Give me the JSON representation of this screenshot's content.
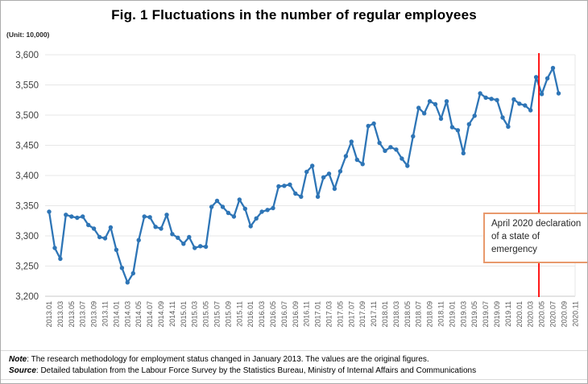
{
  "figure": {
    "title": "Fig. 1 Fluctuations in the number of regular employees",
    "unit_label": "(Unit: 10,000)",
    "note_label": "Note",
    "note_text": ": The research methodology for employment status changed in January 2013. The values are the original figures.",
    "source_label": "Source",
    "source_text": ": Detailed tabulation from the Labour Force Survey by the Statistics Bureau, Ministry of Internal Affairs and Communications"
  },
  "annotation": {
    "text": "April 2020 declaration of a state of emergency"
  },
  "colors": {
    "line": "#2e75b6",
    "marker": "#2e75b6",
    "event_line": "#ff0000",
    "annotation_border": "#e8996c",
    "gridline": "#e7e7e7",
    "bottom_axis": "#c9c9c9",
    "y_label_text": "#404040",
    "x_label_text": "#595959"
  },
  "chart_data": {
    "type": "line",
    "title": "Fig. 1 Fluctuations in the number of regular employees",
    "unit": "10,000 persons",
    "ylim": [
      3200,
      3600
    ],
    "ytick_step": 50,
    "grid": "horizontal only",
    "legend": "none",
    "yticks": [
      "3,600",
      "3,550",
      "3,500",
      "3,450",
      "3,400",
      "3,350",
      "3,300",
      "3,250",
      "3,200"
    ],
    "xticks": [
      "2013.01",
      "2013.03",
      "2013.05",
      "2013.07",
      "2013.09",
      "2013.11",
      "2014.01",
      "2014.03",
      "2014.05",
      "2014.07",
      "2014.09",
      "2014.11",
      "2015.01",
      "2015.03",
      "2015.05",
      "2015.07",
      "2015.09",
      "2015.11",
      "2016.01",
      "2016.03",
      "2016.05",
      "2016.07",
      "2016.09",
      "2016.11",
      "2017.01",
      "2017.03",
      "2017.05",
      "2017.07",
      "2017.09",
      "2017.11",
      "2018.01",
      "2018.03",
      "2018.05",
      "2018.07",
      "2018.09",
      "2018.11",
      "2019.01",
      "2019.03",
      "2019.05",
      "2019.07",
      "2019.09",
      "2019.11",
      "2020.01",
      "2020.03",
      "2020.05",
      "2020.07",
      "2020.09",
      "2020.11"
    ],
    "x": [
      "2013.01",
      "2013.02",
      "2013.03",
      "2013.04",
      "2013.05",
      "2013.06",
      "2013.07",
      "2013.08",
      "2013.09",
      "2013.10",
      "2013.11",
      "2013.12",
      "2014.01",
      "2014.02",
      "2014.03",
      "2014.04",
      "2014.05",
      "2014.06",
      "2014.07",
      "2014.08",
      "2014.09",
      "2014.10",
      "2014.11",
      "2014.12",
      "2015.01",
      "2015.02",
      "2015.03",
      "2015.04",
      "2015.05",
      "2015.06",
      "2015.07",
      "2015.08",
      "2015.09",
      "2015.10",
      "2015.11",
      "2015.12",
      "2016.01",
      "2016.02",
      "2016.03",
      "2016.04",
      "2016.05",
      "2016.06",
      "2016.07",
      "2016.08",
      "2016.09",
      "2016.10",
      "2016.11",
      "2016.12",
      "2017.01",
      "2017.02",
      "2017.03",
      "2017.04",
      "2017.05",
      "2017.06",
      "2017.07",
      "2017.08",
      "2017.09",
      "2017.10",
      "2017.11",
      "2017.12",
      "2018.01",
      "2018.02",
      "2018.03",
      "2018.04",
      "2018.05",
      "2018.06",
      "2018.07",
      "2018.08",
      "2018.09",
      "2018.10",
      "2018.11",
      "2018.12",
      "2019.01",
      "2019.02",
      "2019.03",
      "2019.04",
      "2019.05",
      "2019.06",
      "2019.07",
      "2019.08",
      "2019.09",
      "2019.10",
      "2019.11",
      "2019.12",
      "2020.01",
      "2020.02",
      "2020.03",
      "2020.04",
      "2020.05",
      "2020.06",
      "2020.07",
      "2020.08"
    ],
    "series": [
      {
        "name": "Number of regular employees",
        "values": [
          3340,
          3280,
          3262,
          3335,
          3332,
          3330,
          3332,
          3318,
          3312,
          3298,
          3296,
          3314,
          3277,
          3247,
          3223,
          3238,
          3293,
          3332,
          3331,
          3315,
          3312,
          3335,
          3303,
          3297,
          3287,
          3298,
          3280,
          3283,
          3282,
          3348,
          3358,
          3348,
          3338,
          3332,
          3360,
          3345,
          3316,
          3329,
          3340,
          3343,
          3346,
          3382,
          3383,
          3385,
          3370,
          3365,
          3406,
          3416,
          3365,
          3397,
          3403,
          3378,
          3407,
          3432,
          3456,
          3426,
          3419,
          3482,
          3486,
          3454,
          3441,
          3447,
          3443,
          3428,
          3416,
          3465,
          3512,
          3503,
          3523,
          3518,
          3494,
          3523,
          3480,
          3475,
          3437,
          3485,
          3499,
          3536,
          3529,
          3527,
          3525,
          3496,
          3481,
          3526,
          3519,
          3516,
          3508,
          3563,
          3535,
          3561,
          3578,
          3536
        ]
      }
    ],
    "event_line": {
      "x": "2020.04",
      "label": "April 2020 declaration of a state of emergency"
    }
  }
}
